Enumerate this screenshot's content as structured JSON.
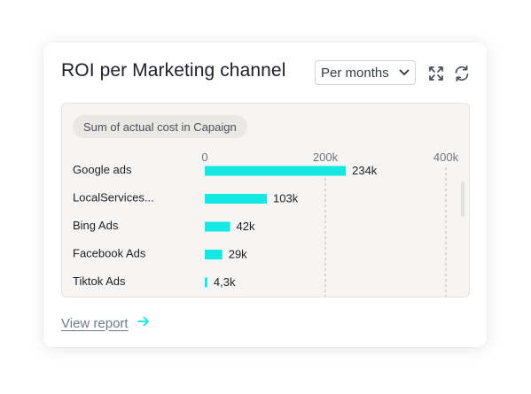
{
  "widget": {
    "title": "ROI per Marketing channel",
    "period_select": {
      "selected": "Per months"
    },
    "measure_pill": "Sum of actual cost in Capaign",
    "view_report": "View report"
  },
  "colors": {
    "bar": "#13e8e3",
    "accent": "#13e8e3",
    "text": "#1c1f26",
    "muted": "#737984"
  },
  "icons": [
    "chevron-down-icon",
    "expand-icon",
    "refresh-icon",
    "arrow-right-icon"
  ],
  "chart_data": {
    "type": "bar",
    "orientation": "horizontal",
    "categories": [
      "Google ads",
      "LocalServices...",
      "Bing Ads",
      "Facebook Ads",
      "Tiktok Ads"
    ],
    "values": [
      234000,
      103000,
      42000,
      29000,
      4300
    ],
    "value_labels": [
      "234k",
      "103k",
      "42k",
      "29k",
      "4,3k"
    ],
    "xlim": [
      0,
      400000
    ],
    "x_ticks": [
      0,
      200000,
      400000
    ],
    "x_tick_labels": [
      "0",
      "200k",
      "400k"
    ],
    "grid": "vertical dashed at 200k and 400k"
  }
}
